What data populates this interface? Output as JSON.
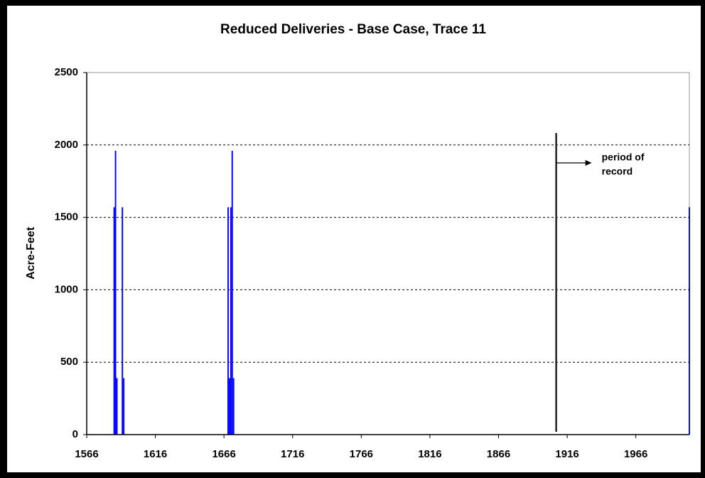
{
  "chart_data": {
    "type": "bar",
    "title": "Reduced Deliveries - Base Case, Trace 11",
    "y_label": "Acre-Feet",
    "x": [
      1586,
      1587,
      1588,
      1592,
      1593,
      1669,
      1670,
      1671,
      1672,
      1673,
      2005
    ],
    "values": [
      1570,
      1960,
      390,
      1570,
      390,
      1570,
      390,
      1570,
      1960,
      390,
      1570
    ],
    "color": "#0000ff",
    "xlim": [
      1566,
      2005
    ],
    "xticks": [
      1566,
      1616,
      1666,
      1716,
      1766,
      1816,
      1866,
      1916,
      1966
    ],
    "ylim": [
      0,
      2500
    ],
    "yticks": [
      0,
      500,
      1000,
      1500,
      2000,
      2500
    ],
    "grid": true,
    "vline_x": 1908,
    "annotation": [
      "period of",
      "record"
    ]
  }
}
